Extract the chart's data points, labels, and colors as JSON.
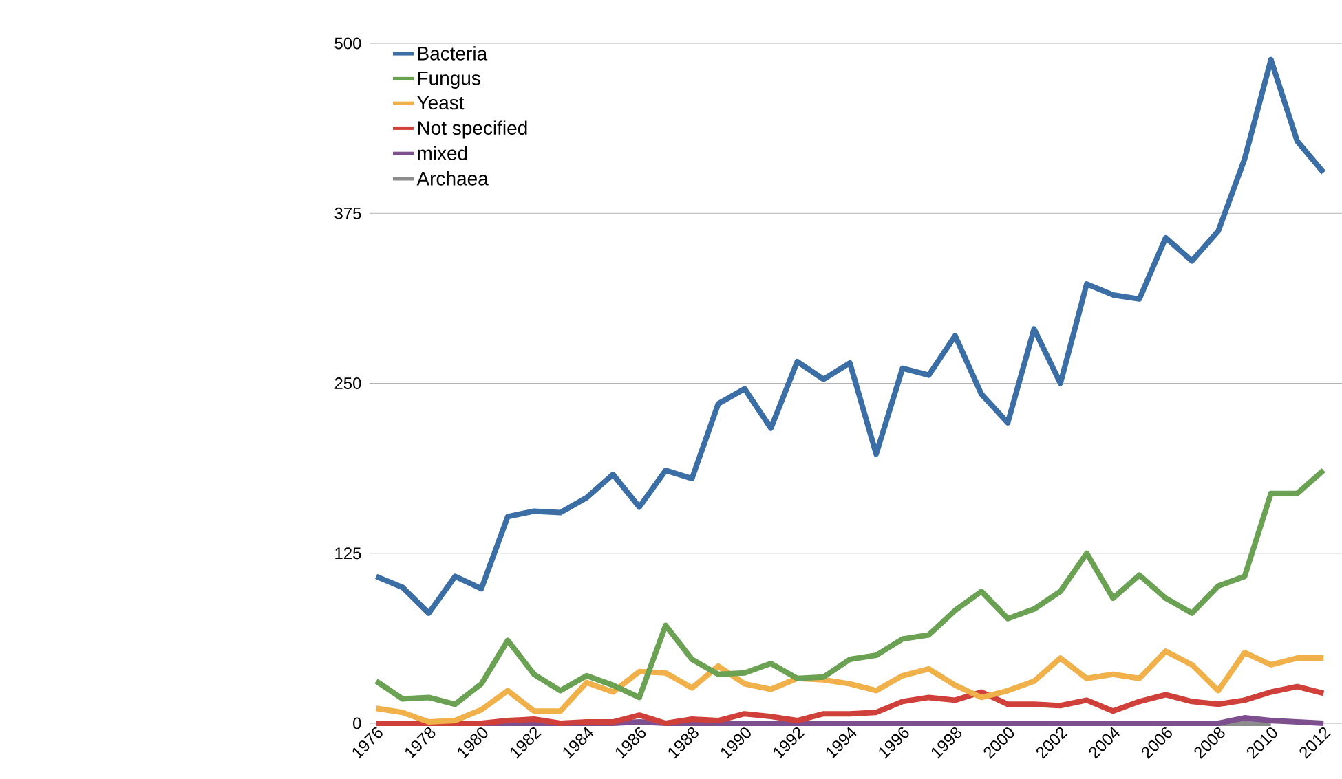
{
  "chart_data": {
    "type": "line",
    "x": [
      1976,
      1977,
      1978,
      1979,
      1980,
      1981,
      1982,
      1983,
      1984,
      1985,
      1986,
      1987,
      1988,
      1989,
      1990,
      1991,
      1992,
      1993,
      1994,
      1995,
      1996,
      1997,
      1998,
      1999,
      2000,
      2001,
      2002,
      2003,
      2004,
      2005,
      2006,
      2007,
      2008,
      2009,
      2010,
      2011,
      2012
    ],
    "series": [
      {
        "name": "Bacteria",
        "color": "#3b6ea5",
        "values": [
          108,
          100,
          81,
          108,
          99,
          152,
          156,
          155,
          166,
          183,
          159,
          186,
          180,
          235,
          246,
          217,
          266,
          253,
          265,
          198,
          261,
          256,
          285,
          242,
          221,
          290,
          250,
          323,
          315,
          312,
          357,
          340,
          362,
          415,
          488,
          428,
          405
        ]
      },
      {
        "name": "Fungus",
        "color": "#6aa153",
        "values": [
          31,
          18,
          19,
          14,
          29,
          61,
          36,
          24,
          35,
          28,
          19,
          72,
          47,
          36,
          37,
          44,
          33,
          34,
          47,
          50,
          62,
          65,
          83,
          97,
          77,
          84,
          97,
          125,
          92,
          109,
          92,
          81,
          101,
          108,
          169,
          169,
          186
        ]
      },
      {
        "name": "Yeast",
        "color": "#f0b04a",
        "values": [
          11,
          8,
          1,
          2,
          10,
          24,
          9,
          9,
          30,
          23,
          38,
          37,
          26,
          42,
          29,
          25,
          33,
          32,
          29,
          24,
          35,
          40,
          28,
          19,
          24,
          31,
          48,
          33,
          36,
          33,
          53,
          43,
          24,
          52,
          43,
          48,
          48
        ]
      },
      {
        "name": "Not specified",
        "color": "#d0403a",
        "values": [
          0,
          0,
          0,
          0,
          0,
          2,
          3,
          0,
          1,
          1,
          6,
          0,
          3,
          2,
          7,
          5,
          2,
          7,
          7,
          8,
          16,
          19,
          17,
          23,
          14,
          14,
          13,
          17,
          9,
          16,
          21,
          16,
          14,
          17,
          23,
          27,
          22
        ]
      },
      {
        "name": "mixed",
        "color": "#7e4f8e",
        "values": [
          0,
          0,
          0,
          0,
          0,
          0,
          0,
          0,
          0,
          0,
          1,
          0,
          0,
          0,
          0,
          0,
          0,
          0,
          0,
          0,
          0,
          0,
          0,
          0,
          0,
          0,
          0,
          0,
          0,
          0,
          0,
          0,
          0,
          4,
          2,
          1,
          0
        ]
      },
      {
        "name": "Archaea",
        "color": "#8c8c8c",
        "values": [
          null,
          null,
          null,
          null,
          null,
          null,
          null,
          null,
          null,
          null,
          null,
          null,
          null,
          null,
          null,
          null,
          null,
          null,
          null,
          null,
          null,
          null,
          null,
          null,
          null,
          null,
          null,
          null,
          null,
          null,
          null,
          null,
          0,
          0,
          0,
          null,
          null
        ]
      }
    ],
    "xlim": [
      1975.75,
      2012.7
    ],
    "xticks": [
      1976,
      1978,
      1980,
      1982,
      1984,
      1986,
      1988,
      1990,
      1992,
      1994,
      1996,
      1998,
      2000,
      2002,
      2004,
      2006,
      2008,
      2010,
      2012
    ],
    "ylim": [
      0,
      500
    ],
    "yticks": [
      0,
      125,
      250,
      375,
      500
    ],
    "grid": "y",
    "legend": "top left",
    "line_style": "solid",
    "marker": "none"
  }
}
